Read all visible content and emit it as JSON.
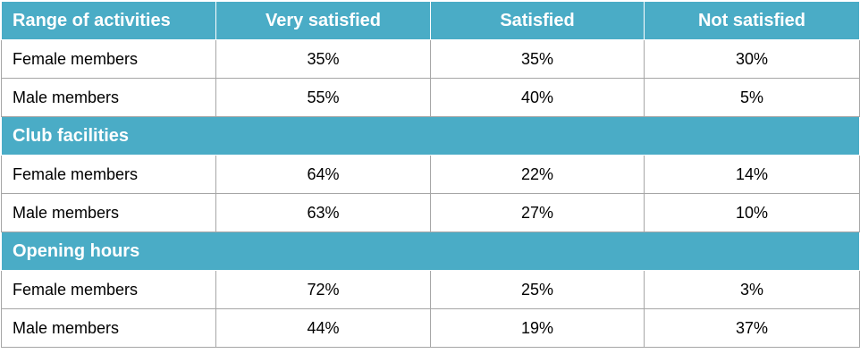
{
  "chart_data": {
    "type": "table",
    "columns": [
      "Range of activities",
      "Very satisfied",
      "Satisfied",
      "Not satisfied"
    ],
    "sections": [
      {
        "title": "Range of activities",
        "rows": [
          {
            "label": "Female members",
            "values": [
              "35%",
              "35%",
              "30%"
            ]
          },
          {
            "label": "Male members",
            "values": [
              "55%",
              "40%",
              "5%"
            ]
          }
        ]
      },
      {
        "title": "Club facilities",
        "rows": [
          {
            "label": "Female members",
            "values": [
              "64%",
              "22%",
              "14%"
            ]
          },
          {
            "label": "Male members",
            "values": [
              "63%",
              "27%",
              "10%"
            ]
          }
        ]
      },
      {
        "title": "Opening hours",
        "rows": [
          {
            "label": "Female members",
            "values": [
              "72%",
              "25%",
              "3%"
            ]
          },
          {
            "label": "Male members",
            "values": [
              "44%",
              "19%",
              "37%"
            ]
          }
        ]
      }
    ]
  },
  "colors": {
    "header_background": "#4aacc6",
    "header_text": "#ffffff",
    "border": "#a6a6a6"
  }
}
